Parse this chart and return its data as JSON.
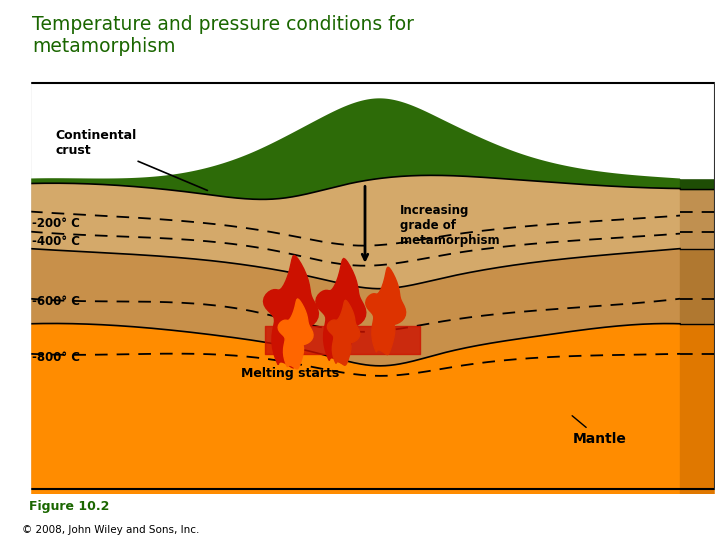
{
  "title": "Temperature and pressure conditions for\nmetamorphism",
  "title_bg_color": "#FFFF99",
  "title_text_color": "#1a6600",
  "fig_bg_color": "#ffffff",
  "caption_line1": "Figure 10.2",
  "caption_line2": "© 2008, John Wiley and Sons, Inc.",
  "caption_color": "#1a6600",
  "labels": {
    "continental_crust": "Continental\ncrust",
    "increasing_grade": "Increasing\ngrade of\nmetamorphism",
    "temp_200": "-200° C",
    "temp_400": "-400° C",
    "temp_600": "-600° C",
    "temp_800": "-800° C",
    "melting_starts": "Melting starts",
    "mantle": "Mantle"
  },
  "mantle_color": "#FF8C00",
  "mantle_side_color": "#e07800",
  "crust1_color": "#c8904a",
  "crust1_side_color": "#b07830",
  "crust2_color": "#d4a96a",
  "crust2_side_color": "#c09050",
  "crust3_color": "#c8904a",
  "grass_color": "#2d6b08",
  "grass_dark_color": "#1e4d05",
  "lava_dark": "#cc1100",
  "lava_mid": "#dd3300",
  "lava_light": "#ff6600"
}
